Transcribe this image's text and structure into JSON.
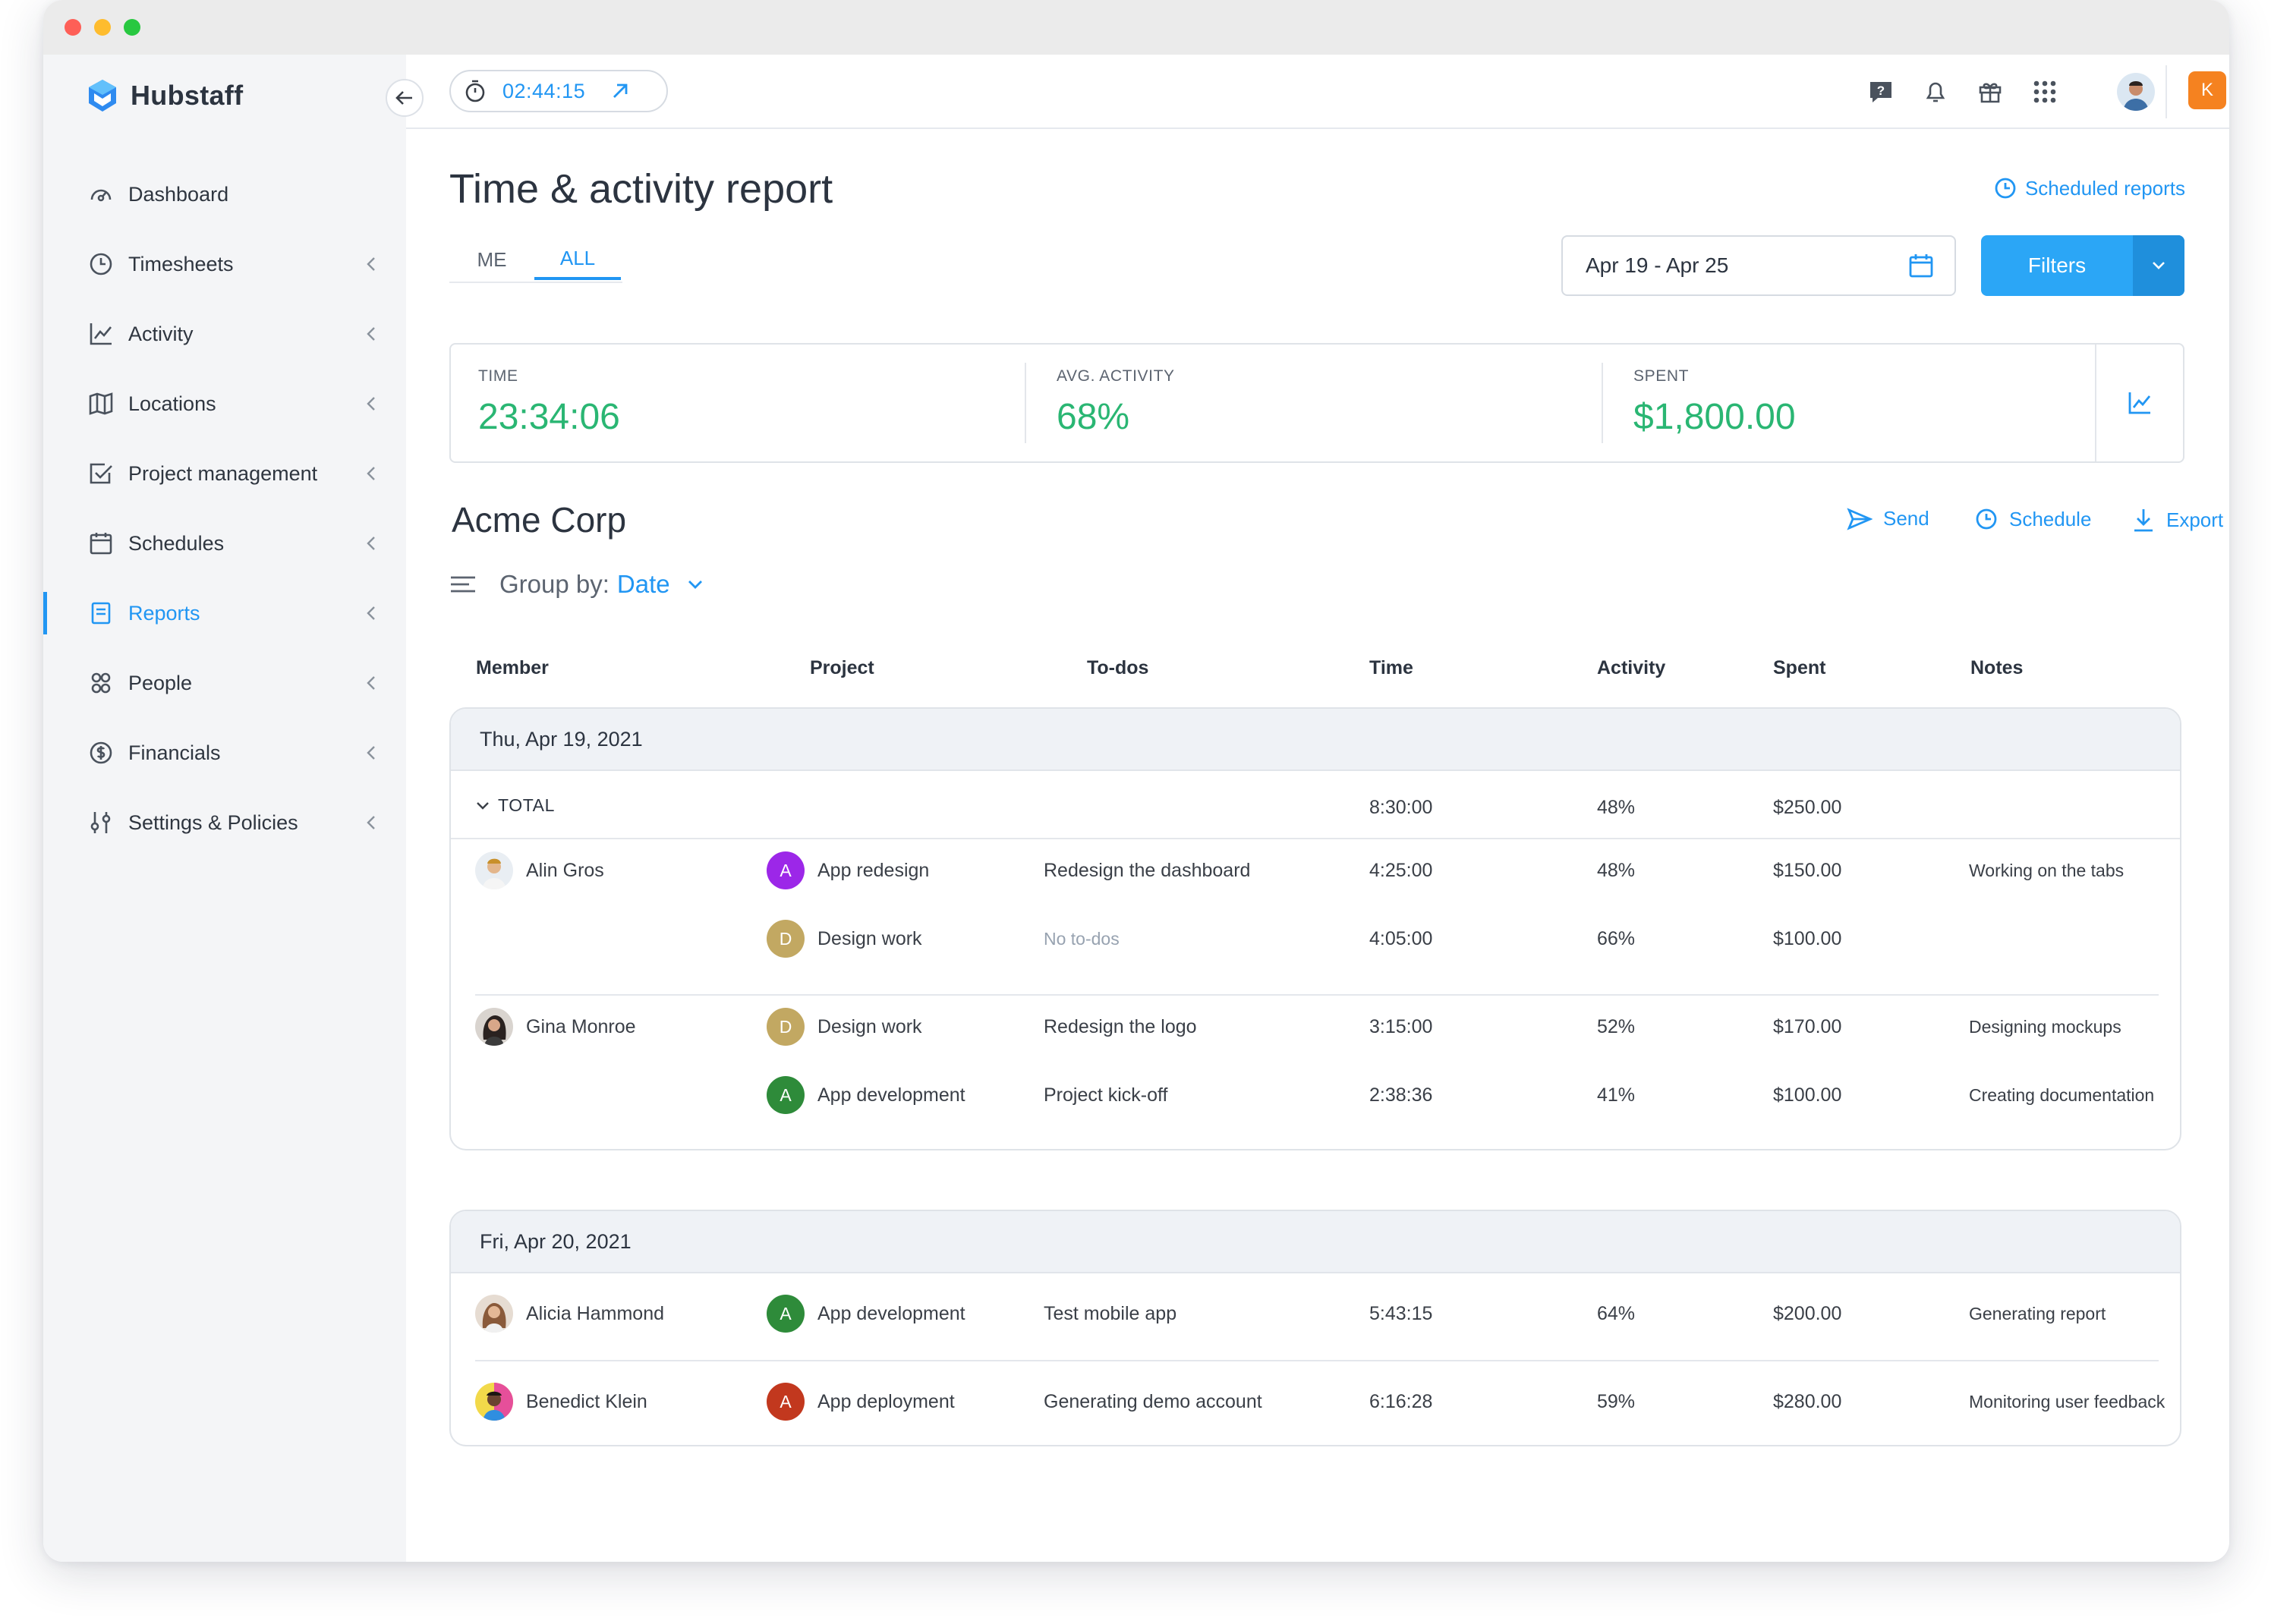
{
  "app": {
    "name": "Hubstaff"
  },
  "colors": {
    "accent": "#2196f3",
    "green": "#2ab673",
    "project_purple": "#9c27e8",
    "project_olive": "#c2a862",
    "project_green": "#2e8b3a",
    "project_red": "#c2381e",
    "orange": "#f58220"
  },
  "timer": {
    "value": "02:44:15"
  },
  "user": {
    "initial": "K"
  },
  "sidebar": {
    "items": [
      {
        "label": "Dashboard",
        "icon": "gauge-icon"
      },
      {
        "label": "Timesheets",
        "icon": "clock-icon"
      },
      {
        "label": "Activity",
        "icon": "chart-icon"
      },
      {
        "label": "Locations",
        "icon": "map-icon"
      },
      {
        "label": "Project management",
        "icon": "checkbox-icon"
      },
      {
        "label": "Schedules",
        "icon": "calendar-icon"
      },
      {
        "label": "Reports",
        "icon": "report-icon"
      },
      {
        "label": "People",
        "icon": "people-icon"
      },
      {
        "label": "Financials",
        "icon": "dollar-icon"
      },
      {
        "label": "Settings & Policies",
        "icon": "sliders-icon"
      }
    ]
  },
  "page": {
    "title": "Time & activity report",
    "scheduled_reports": "Scheduled reports",
    "tabs": [
      "ME",
      "ALL"
    ],
    "date_range": "Apr 19 - Apr 25",
    "filters_label": "Filters"
  },
  "stats": {
    "time_label": "TIME",
    "time_value": "23:34:06",
    "activity_label": "AVG. ACTIVITY",
    "activity_value": "68%",
    "spent_label": "SPENT",
    "spent_value": "$1,800.00"
  },
  "report": {
    "org": "Acme Corp",
    "send": "Send",
    "schedule": "Schedule",
    "export": "Export",
    "group_by_label": "Group by:",
    "group_by_value": "Date",
    "columns": [
      "Member",
      "Project",
      "To-dos",
      "Time",
      "Activity",
      "Spent",
      "Notes"
    ],
    "days": [
      {
        "date": "Thu, Apr 19, 2021",
        "total": {
          "label": "TOTAL",
          "time": "8:30:00",
          "activity": "48%",
          "spent": "$250.00"
        },
        "rows": [
          {
            "member": "Alin Gros",
            "project_initial": "A",
            "project": "App redesign",
            "todo": "Redesign the dashboard",
            "time": "4:25:00",
            "activity": "48%",
            "spent": "$150.00",
            "notes": "Working on the tabs"
          },
          {
            "member": "",
            "project_initial": "D",
            "project": "Design work",
            "todo": "No to-dos",
            "time": "4:05:00",
            "activity": "66%",
            "spent": "$100.00",
            "notes": ""
          },
          {
            "member": "Gina Monroe",
            "project_initial": "D",
            "project": "Design work",
            "todo": "Redesign the logo",
            "time": "3:15:00",
            "activity": "52%",
            "spent": "$170.00",
            "notes": "Designing mockups"
          },
          {
            "member": "",
            "project_initial": "A",
            "project": "App development",
            "todo": "Project kick-off",
            "time": "2:38:36",
            "activity": "41%",
            "spent": "$100.00",
            "notes": "Creating documentation"
          }
        ]
      },
      {
        "date": "Fri, Apr 20, 2021",
        "rows": [
          {
            "member": "Alicia Hammond",
            "project_initial": "A",
            "project": "App development",
            "todo": "Test mobile app",
            "time": "5:43:15",
            "activity": "64%",
            "spent": "$200.00",
            "notes": "Generating report"
          },
          {
            "member": "Benedict Klein",
            "project_initial": "A",
            "project": "App deployment",
            "todo": "Generating demo account",
            "time": "6:16:28",
            "activity": "59%",
            "spent": "$280.00",
            "notes": "Monitoring user feedback"
          }
        ]
      }
    ]
  }
}
